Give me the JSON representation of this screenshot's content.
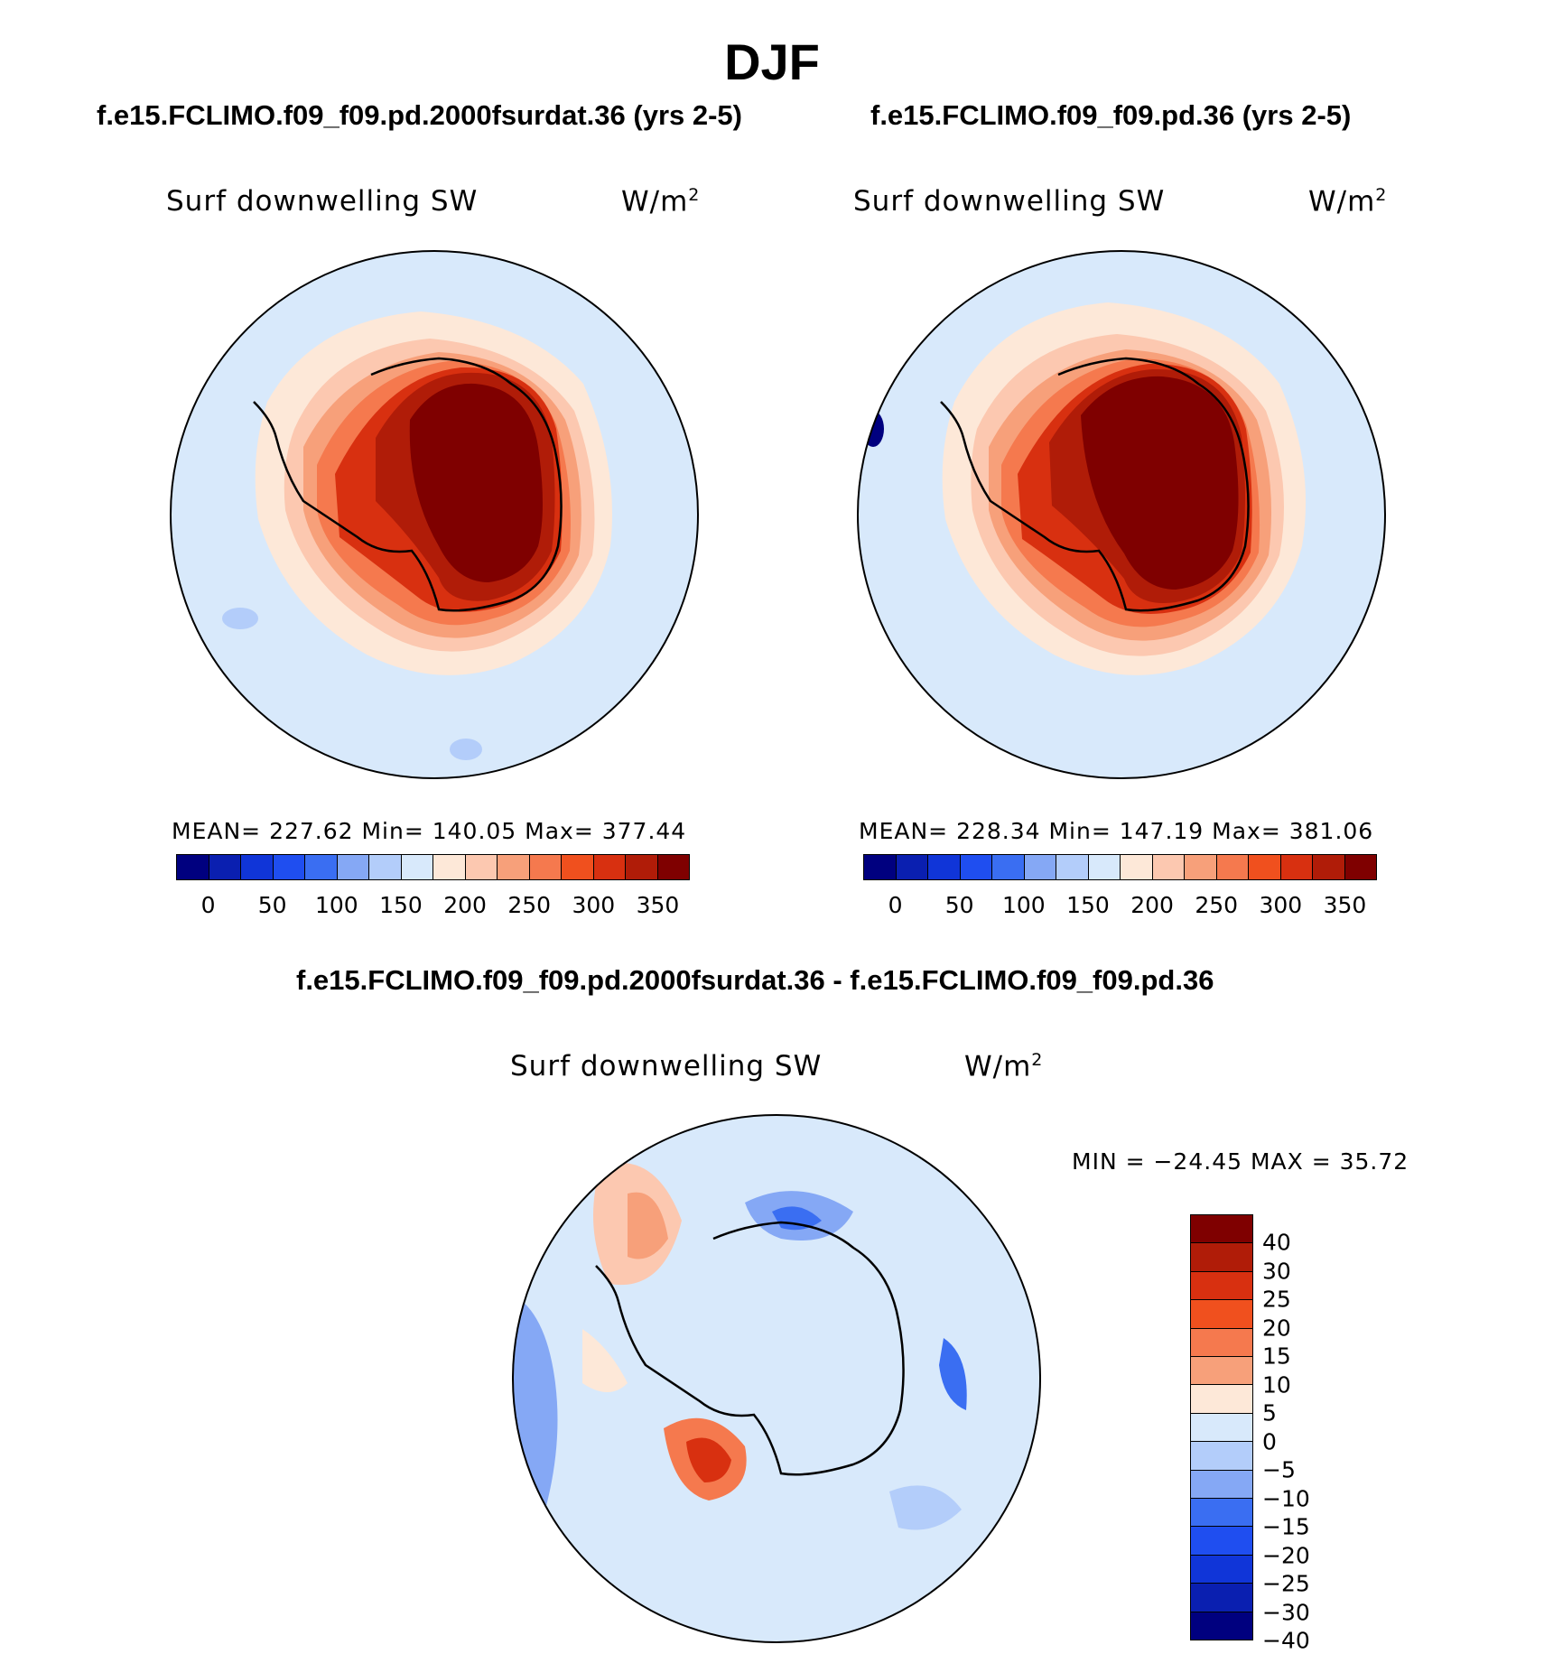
{
  "figure": {
    "title": "DJF"
  },
  "panels": [
    {
      "case_title": "f.e15.FCLIMO.f09_f09.pd.2000fsurdat.36 (yrs 2-5)",
      "variable": "Surf downwelling SW",
      "units_base": "W/m",
      "units_exp": "2",
      "stats": "MEAN= 227.62   Min= 140.05   Max= 377.44"
    },
    {
      "case_title": "f.e15.FCLIMO.f09_f09.pd.36 (yrs 2-5)",
      "variable": "Surf downwelling SW",
      "units_base": "W/m",
      "units_exp": "2",
      "stats": "MEAN= 228.34   Min= 147.19   Max= 381.06"
    }
  ],
  "difference_panel": {
    "case_title": "f.e15.FCLIMO.f09_f09.pd.2000fsurdat.36 - f.e15.FCLIMO.f09_f09.pd.36",
    "variable": "Surf downwelling SW",
    "units_base": "W/m",
    "units_exp": "2",
    "stats": "MIN = −24.45 MAX =   35.72"
  },
  "chart_data": [
    {
      "type": "heatmap",
      "projection": "south polar stereographic",
      "title": "f.e15.FCLIMO.f09_f09.pd.2000fsurdat.36 (yrs 2-5)",
      "variable": "Surf downwelling SW",
      "units": "W/m2",
      "mean": 227.62,
      "min": 140.05,
      "max": 377.44,
      "colorbar_ticks": [
        "0",
        "50",
        "100",
        "150",
        "200",
        "250",
        "300",
        "350"
      ],
      "colorbar_colors": [
        "#00007f",
        "#0a1fb0",
        "#1035d8",
        "#1f4ef0",
        "#3a6ef2",
        "#85a8f5",
        "#b3cdfa",
        "#d8e9fb",
        "#fde8d8",
        "#fcc8b0",
        "#f7a07a",
        "#f5794e",
        "#f0501e",
        "#d83010",
        "#b01c08",
        "#7f0000"
      ]
    },
    {
      "type": "heatmap",
      "projection": "south polar stereographic",
      "title": "f.e15.FCLIMO.f09_f09.pd.36 (yrs 2-5)",
      "variable": "Surf downwelling SW",
      "units": "W/m2",
      "mean": 228.34,
      "min": 147.19,
      "max": 381.06,
      "colorbar_ticks": [
        "0",
        "50",
        "100",
        "150",
        "200",
        "250",
        "300",
        "350"
      ],
      "colorbar_colors": [
        "#00007f",
        "#0a1fb0",
        "#1035d8",
        "#1f4ef0",
        "#3a6ef2",
        "#85a8f5",
        "#b3cdfa",
        "#d8e9fb",
        "#fde8d8",
        "#fcc8b0",
        "#f7a07a",
        "#f5794e",
        "#f0501e",
        "#d83010",
        "#b01c08",
        "#7f0000"
      ]
    },
    {
      "type": "heatmap",
      "projection": "south polar stereographic",
      "title": "f.e15.FCLIMO.f09_f09.pd.2000fsurdat.36 - f.e15.FCLIMO.f09_f09.pd.36",
      "variable": "Surf downwelling SW",
      "units": "W/m2",
      "min": -24.45,
      "max": 35.72,
      "colorbar_ticks": [
        "40",
        "30",
        "25",
        "20",
        "15",
        "10",
        "5",
        "0",
        "−5",
        "−10",
        "−15",
        "−20",
        "−25",
        "−30",
        "−40"
      ],
      "colorbar_colors": [
        "#7f0000",
        "#b01c08",
        "#d83010",
        "#f0501e",
        "#f5794e",
        "#f7a07a",
        "#fde8d8",
        "#d8e9fb",
        "#b3cdfa",
        "#85a8f5",
        "#3a6ef2",
        "#1f4ef0",
        "#1035d8",
        "#0a1fb0",
        "#00007f"
      ]
    }
  ]
}
